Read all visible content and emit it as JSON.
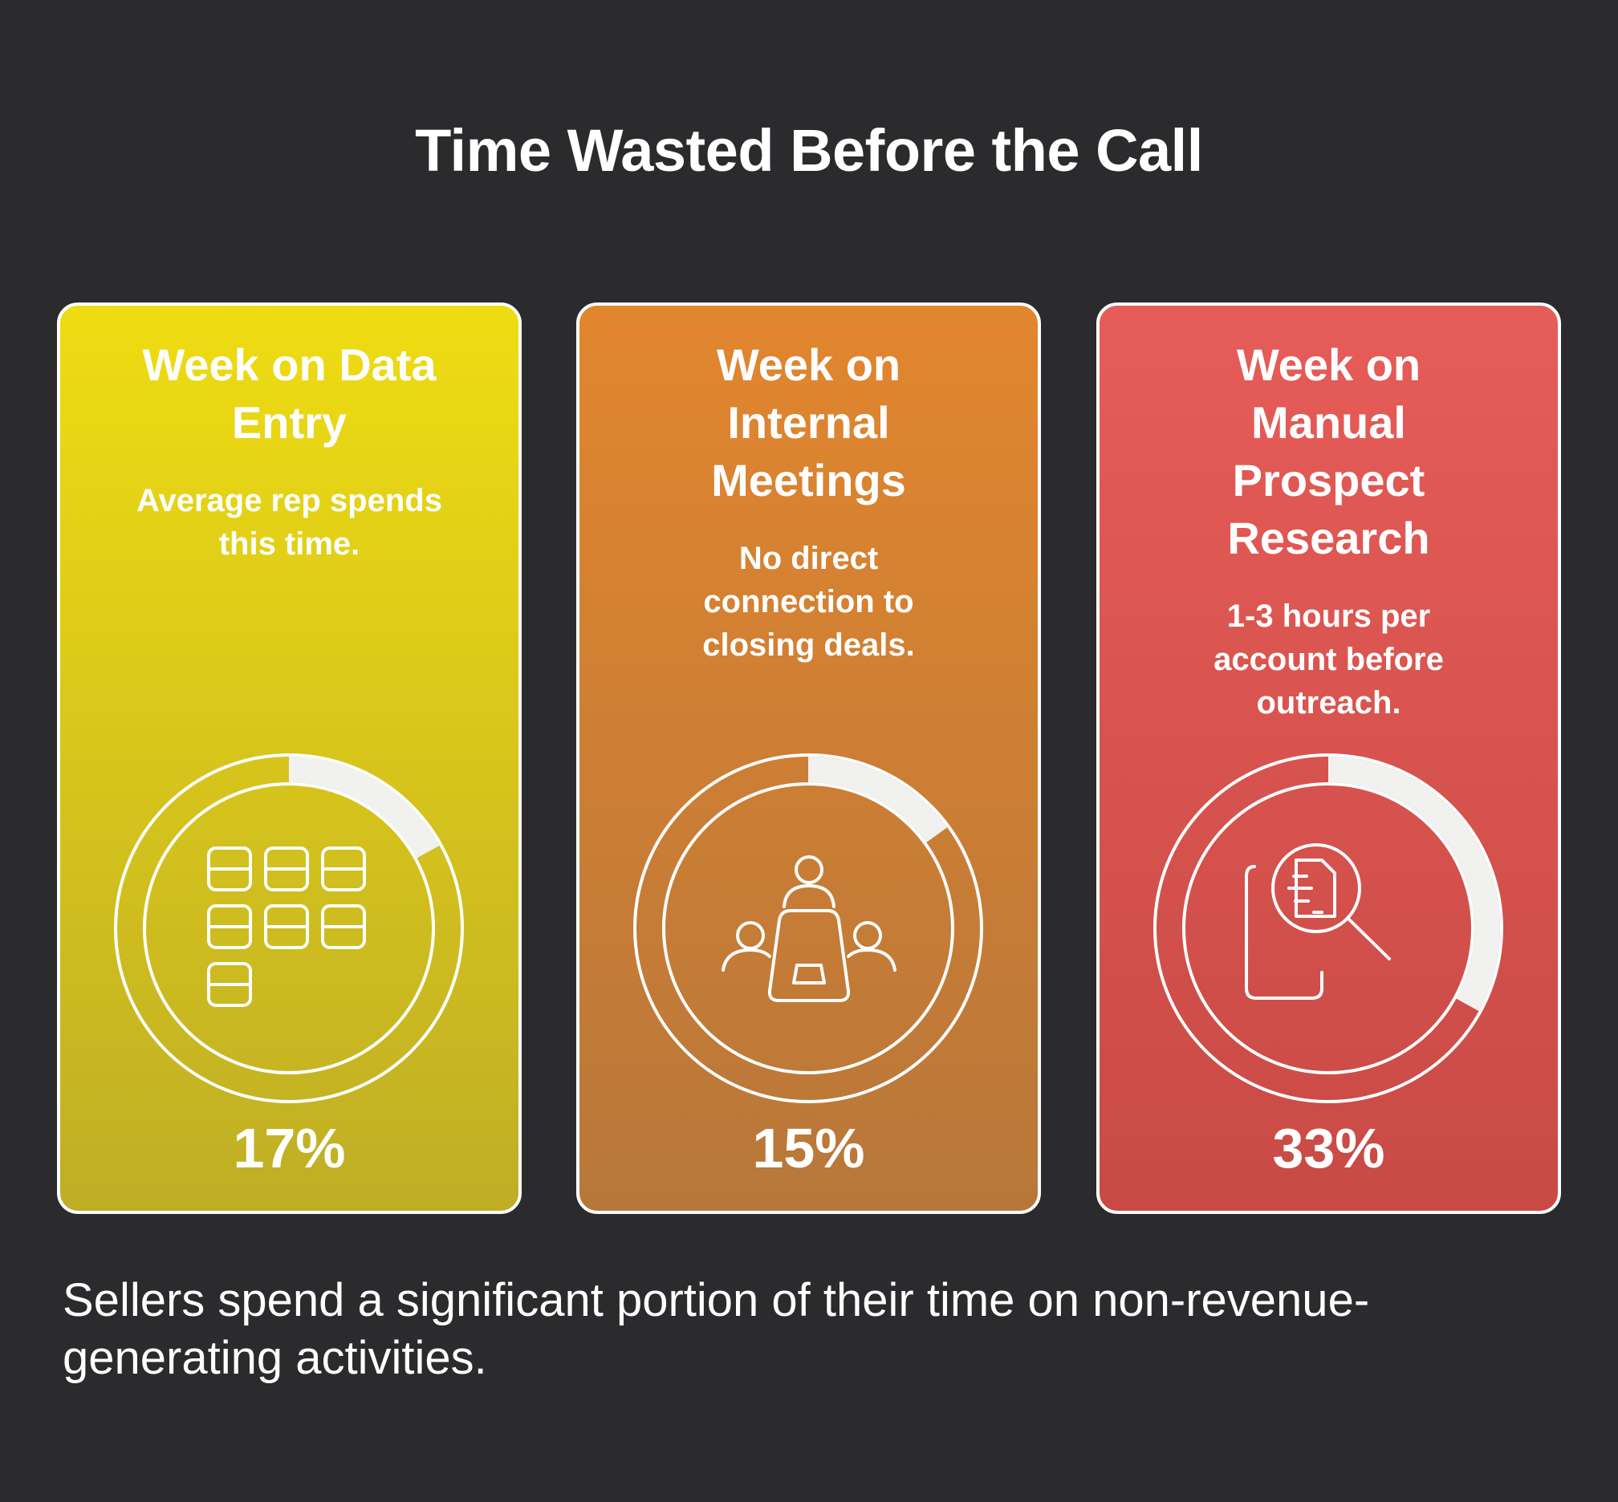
{
  "title": "Time Wasted Before the Call",
  "cards": [
    {
      "heading": "Week on Data Entry",
      "description": "Average rep spends this time.",
      "percent_label": "17%",
      "percent_value": 17,
      "icon": "data-grid-icon",
      "gradient": [
        "#efdc12",
        "#bfae25"
      ]
    },
    {
      "heading": "Week on Internal Meetings",
      "description": "No direct connection to closing deals.",
      "percent_label": "15%",
      "percent_value": 15,
      "icon": "meeting-table-icon",
      "gradient": [
        "#e2862e",
        "#b8773a"
      ]
    },
    {
      "heading": "Week on Manual Prospect Research",
      "description": "1-3 hours per account before outreach.",
      "percent_label": "33%",
      "percent_value": 33,
      "icon": "document-search-icon",
      "gradient": [
        "#e65c58",
        "#c94a45"
      ]
    }
  ],
  "footer": "Sellers spend a significant portion of their time on non-revenue-generating activities."
}
